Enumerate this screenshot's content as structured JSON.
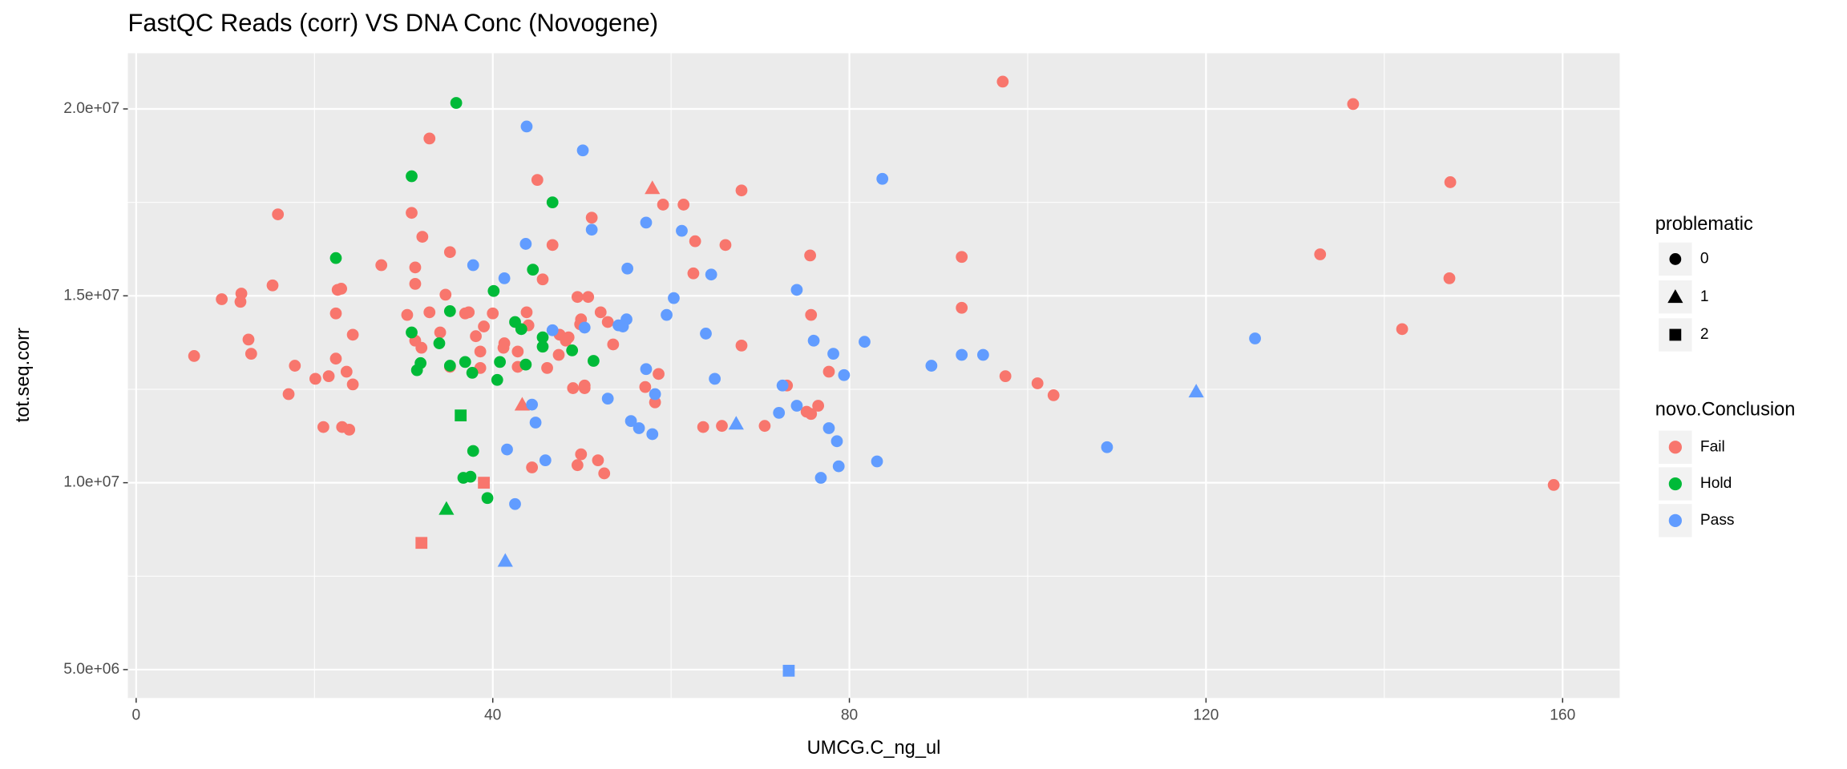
{
  "chart_data": {
    "type": "scatter",
    "title": "FastQC Reads (corr) VS DNA Conc (Novogene)",
    "x_label": "UMCG.C_ng_ul",
    "y_label": "tot.seq.corr",
    "xlim": [
      -0.93,
      166.4
    ],
    "ylim": [
      4240000,
      21490000
    ],
    "xticks": [
      0,
      40,
      80,
      120,
      160
    ],
    "yticks": [
      {
        "value": 5000000,
        "label": "5.0e+06"
      },
      {
        "value": 10000000,
        "label": "1.0e+07"
      },
      {
        "value": 15000000,
        "label": "1.5e+07"
      },
      {
        "value": 20000000,
        "label": "2.0e+07"
      }
    ],
    "grid": true,
    "legend_position": "right",
    "color_legend_title": "novo.Conclusion",
    "shape_legend": {
      "title": "problematic",
      "levels": [
        0,
        1,
        2
      ],
      "shapes": [
        "circle",
        "triangle",
        "square"
      ]
    },
    "series": [
      {
        "name": "Fail",
        "color": "#F8766D",
        "x": [
          6.5,
          9.6,
          11.7,
          11.8,
          12.6,
          12.9,
          15.3,
          15.9,
          17.1,
          17.8,
          20.1,
          21.0,
          21.6,
          22.4,
          22.6,
          23.0,
          22.4,
          23.1,
          23.9,
          23.6,
          24.3,
          24.3,
          27.5,
          30.4,
          30.9,
          31.3,
          31.3,
          31.3,
          32.0,
          32.1,
          32.9,
          32.9,
          34.1,
          34.7,
          35.2,
          35.2,
          36.9,
          37.3,
          38.1,
          38.6,
          39.0,
          38.6,
          40.0,
          41.2,
          41.3,
          42.8,
          42.8,
          43.8,
          44.0,
          45.0,
          45.6,
          46.1,
          46.7,
          47.4,
          47.5,
          48.2,
          48.5,
          49.0,
          49.5,
          49.9,
          50.3,
          49.9,
          49.5,
          49.8,
          50.3,
          50.7,
          51.1,
          51.8,
          52.1,
          52.5,
          52.9,
          53.5,
          57.1,
          58.2,
          58.6,
          59.1,
          61.4,
          62.5,
          62.7,
          63.6,
          65.7,
          66.1,
          67.9,
          67.9,
          70.5,
          73.0,
          75.2,
          75.7,
          75.6,
          75.7,
          76.5,
          77.7,
          92.6,
          92.6,
          97.2,
          97.5,
          101.1,
          102.9,
          132.8,
          136.5,
          142.0,
          147.3,
          147.4,
          159.0,
          44.4,
          57.9,
          43.3,
          32.0,
          39.0
        ],
        "y": [
          13390000,
          14910000,
          14840000,
          15060000,
          13830000,
          13450000,
          15280000,
          17180000,
          12370000,
          13130000,
          12780000,
          11490000,
          12850000,
          13320000,
          15160000,
          15190000,
          14530000,
          11490000,
          11420000,
          12970000,
          12630000,
          13960000,
          15820000,
          14490000,
          17220000,
          15760000,
          15320000,
          13800000,
          13610000,
          16580000,
          19210000,
          14560000,
          14020000,
          15030000,
          16170000,
          13100000,
          14530000,
          14560000,
          13920000,
          13510000,
          14180000,
          13070000,
          14530000,
          13610000,
          13730000,
          13510000,
          13100000,
          14560000,
          14210000,
          18100000,
          15440000,
          13070000,
          16360000,
          13420000,
          13960000,
          13800000,
          13890000,
          12530000,
          14970000,
          14370000,
          12600000,
          10760000,
          10470000,
          14240000,
          12530000,
          14970000,
          17090000,
          10600000,
          14560000,
          10250000,
          14300000,
          13700000,
          12560000,
          12150000,
          12910000,
          17440000,
          17440000,
          15600000,
          16460000,
          11490000,
          11520000,
          16360000,
          13670000,
          17820000,
          11520000,
          12600000,
          11900000,
          11840000,
          16080000,
          14490000,
          12060000,
          12970000,
          16040000,
          14680000,
          20730000,
          12850000,
          12660000,
          12340000,
          16110000,
          20130000,
          14110000,
          15470000,
          18040000,
          9940000,
          10410000,
          17880000,
          12090000,
          8390000,
          10000000
        ],
        "problematic": [
          0,
          0,
          0,
          0,
          0,
          0,
          0,
          0,
          0,
          0,
          0,
          0,
          0,
          0,
          0,
          0,
          0,
          0,
          0,
          0,
          0,
          0,
          0,
          0,
          0,
          0,
          0,
          0,
          0,
          0,
          0,
          0,
          0,
          0,
          0,
          0,
          0,
          0,
          0,
          0,
          0,
          0,
          0,
          0,
          0,
          0,
          0,
          0,
          0,
          0,
          0,
          0,
          0,
          0,
          0,
          0,
          0,
          0,
          0,
          0,
          0,
          0,
          0,
          0,
          0,
          0,
          0,
          0,
          0,
          0,
          0,
          0,
          0,
          0,
          0,
          0,
          0,
          0,
          0,
          0,
          0,
          0,
          0,
          0,
          0,
          0,
          0,
          0,
          0,
          0,
          0,
          0,
          0,
          0,
          0,
          0,
          0,
          0,
          0,
          0,
          0,
          0,
          0,
          0,
          0,
          1,
          1,
          2,
          2
        ]
      },
      {
        "name": "Hold",
        "color": "#00BA38",
        "x": [
          35.9,
          30.9,
          46.7,
          22.4,
          44.5,
          40.1,
          35.2,
          30.9,
          34.0,
          42.5,
          43.2,
          45.6,
          45.6,
          48.9,
          51.3,
          31.5,
          31.9,
          35.2,
          36.9,
          37.7,
          40.5,
          40.8,
          43.7,
          37.8,
          36.7,
          37.5,
          39.4,
          34.8,
          36.4
        ],
        "y": [
          20160000,
          18200000,
          17500000,
          16010000,
          15700000,
          15130000,
          14590000,
          14020000,
          13730000,
          14300000,
          14110000,
          13890000,
          13640000,
          13540000,
          13260000,
          13010000,
          13200000,
          13130000,
          13230000,
          12940000,
          12750000,
          13230000,
          13160000,
          10850000,
          10130000,
          10160000,
          9590000,
          9300000,
          11800000
        ],
        "problematic": [
          0,
          0,
          0,
          0,
          0,
          0,
          0,
          0,
          0,
          0,
          0,
          0,
          0,
          0,
          0,
          0,
          0,
          0,
          0,
          0,
          0,
          0,
          0,
          0,
          0,
          0,
          0,
          1,
          2
        ]
      },
      {
        "name": "Pass",
        "color": "#619CFF",
        "x": [
          43.8,
          50.1,
          83.7,
          61.2,
          57.2,
          51.1,
          43.7,
          37.8,
          41.3,
          55.1,
          64.5,
          60.3,
          74.1,
          59.5,
          63.9,
          55.0,
          54.6,
          54.1,
          46.7,
          50.3,
          76.0,
          78.2,
          81.7,
          44.4,
          52.9,
          57.2,
          58.2,
          64.9,
          72.5,
          72.1,
          74.1,
          77.7,
          78.6,
          89.2,
          92.6,
          95.0,
          79.4,
          125.5,
          108.9,
          55.5,
          56.4,
          57.9,
          44.8,
          45.9,
          41.6,
          42.5,
          76.8,
          78.8,
          83.1,
          118.9,
          67.3,
          41.4,
          73.2
        ],
        "y": [
          19530000,
          18890000,
          18130000,
          16740000,
          16960000,
          16770000,
          16390000,
          15820000,
          15470000,
          15730000,
          15570000,
          14940000,
          15160000,
          14490000,
          13990000,
          14370000,
          14180000,
          14210000,
          14080000,
          14150000,
          13800000,
          13450000,
          13770000,
          12090000,
          12250000,
          13040000,
          12370000,
          12780000,
          12600000,
          11870000,
          12060000,
          11460000,
          11110000,
          13130000,
          13420000,
          13420000,
          12880000,
          13860000,
          10950000,
          11650000,
          11460000,
          11300000,
          11610000,
          10600000,
          10890000,
          9430000,
          10130000,
          10440000,
          10570000,
          12440000,
          11580000,
          7910000,
          4970000
        ],
        "problematic": [
          0,
          0,
          0,
          0,
          0,
          0,
          0,
          0,
          0,
          0,
          0,
          0,
          0,
          0,
          0,
          0,
          0,
          0,
          0,
          0,
          0,
          0,
          0,
          0,
          0,
          0,
          0,
          0,
          0,
          0,
          0,
          0,
          0,
          0,
          0,
          0,
          0,
          0,
          0,
          0,
          0,
          0,
          0,
          0,
          0,
          0,
          0,
          0,
          0,
          1,
          1,
          1,
          2
        ]
      }
    ]
  }
}
